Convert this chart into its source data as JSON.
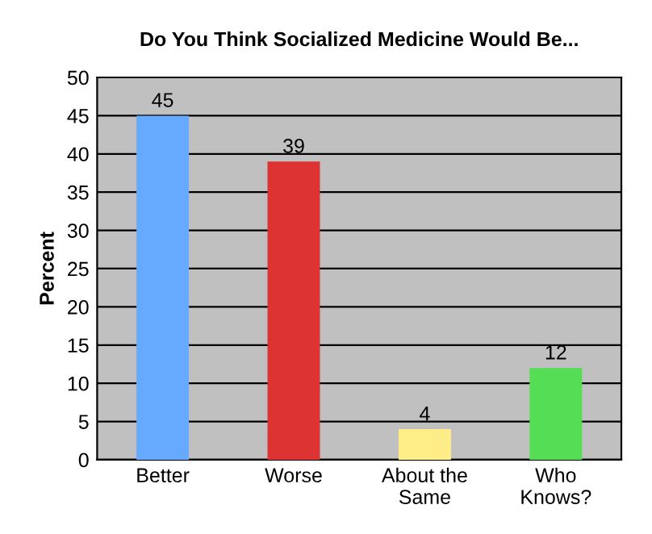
{
  "chart_data": {
    "type": "bar",
    "title": "Do You Think Socialized Medicine Would Be...",
    "ylabel": "Percent",
    "categories": [
      "Better",
      "Worse",
      "About the\nSame",
      "Who\nKnows?"
    ],
    "values": [
      45,
      39,
      4,
      12
    ],
    "colors": [
      "#66aaff",
      "#dd3333",
      "#ffee88",
      "#55dd55"
    ],
    "ylim": [
      0,
      50
    ],
    "yticks": [
      0,
      5,
      10,
      15,
      20,
      25,
      30,
      35,
      40,
      45,
      50
    ],
    "grid": "y",
    "data_labels": true
  }
}
